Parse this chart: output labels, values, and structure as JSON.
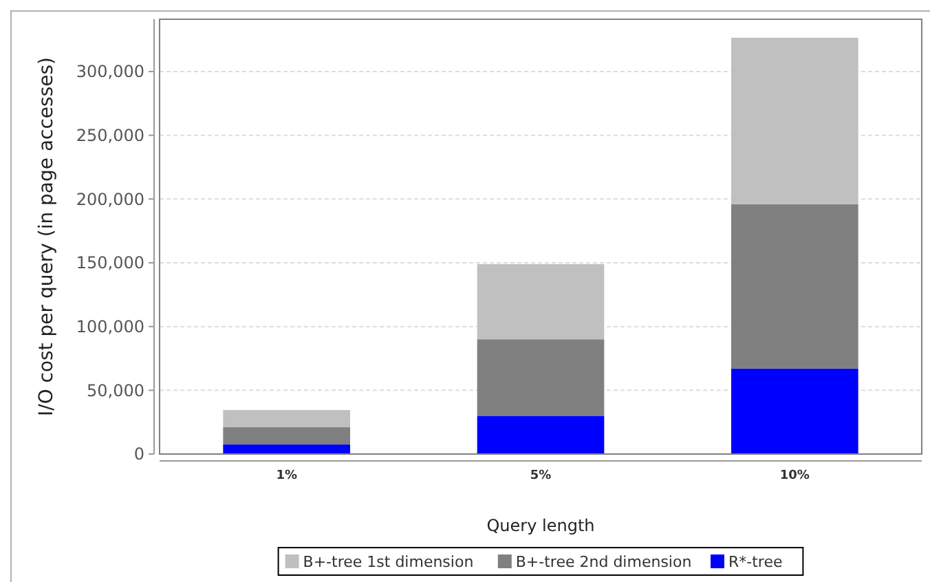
{
  "chart_data": {
    "type": "bar",
    "stacked": true,
    "xlabel": "Query length",
    "ylabel": "I/O cost per query (in page accesses)",
    "categories": [
      "1%",
      "5%",
      "10%"
    ],
    "series": [
      {
        "name": "R*-tree",
        "color": "#0000ff",
        "values": [
          7500,
          30000,
          67000
        ]
      },
      {
        "name": "B+-tree 2nd dimension",
        "color": "#808080",
        "values": [
          13500,
          60000,
          129000
        ]
      },
      {
        "name": "B+-tree 1st dimension",
        "color": "#c0c0c0",
        "values": [
          13500,
          59000,
          130500
        ]
      }
    ],
    "ylim": [
      0,
      341000
    ],
    "yticks": [
      {
        "value": 0,
        "label": "0"
      },
      {
        "value": 50000,
        "label": "50,000"
      },
      {
        "value": 100000,
        "label": "100,000"
      },
      {
        "value": 150000,
        "label": "150,000"
      },
      {
        "value": 200000,
        "label": "200,000"
      },
      {
        "value": 250000,
        "label": "250,000"
      },
      {
        "value": 300000,
        "label": "300,000"
      }
    ],
    "grid": "y",
    "legend": "bottom"
  }
}
